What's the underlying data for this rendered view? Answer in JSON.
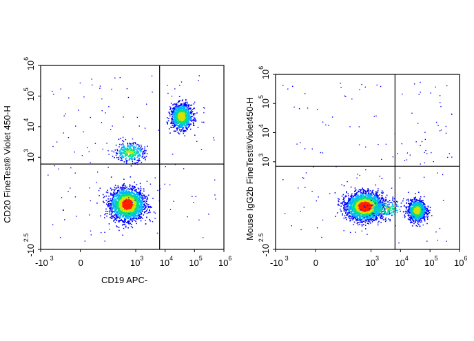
{
  "chart_data": [
    {
      "type": "scatter",
      "subtype": "flow-cytometry-density-dot-plot",
      "xlabel": "CD19  APC-",
      "ylabel": "CD20 FineTest® Violet 450-H",
      "x_scale": "biexponential",
      "y_scale": "biexponential",
      "xlim": [
        -1000,
        1000000
      ],
      "ylim": [
        -316,
        1000000
      ],
      "x_ticks": [
        {
          "value": -1000,
          "base": "-10",
          "exp": "3"
        },
        {
          "value": 0,
          "base": "0",
          "exp": ""
        },
        {
          "value": 1000,
          "base": "10",
          "exp": "3"
        },
        {
          "value": 10000,
          "base": "10",
          "exp": "4"
        },
        {
          "value": 100000,
          "base": "10",
          "exp": "5"
        },
        {
          "value": 1000000,
          "base": "10",
          "exp": "6"
        }
      ],
      "y_ticks": [
        {
          "value": -316,
          "base": "-10",
          "exp": "2.5"
        },
        {
          "value": 1000,
          "base": "10",
          "exp": "3"
        },
        {
          "value": 10000,
          "base": "10",
          "exp": "4"
        },
        {
          "value": 100000,
          "base": "10",
          "exp": "5"
        },
        {
          "value": 1000000,
          "base": "10",
          "exp": "6"
        }
      ],
      "quadrant_gate": {
        "x": 6500,
        "y": 600
      },
      "populations": [
        {
          "x": 500,
          "y": 80,
          "spread_x": 0.55,
          "spread_y": 0.5,
          "weight": 0.62
        },
        {
          "x": 35000,
          "y": 22000,
          "spread_x": 0.35,
          "spread_y": 0.4,
          "weight": 0.28
        },
        {
          "x": 600,
          "y": 1500,
          "spread_x": 0.5,
          "spread_y": 0.3,
          "weight": 0.1
        }
      ],
      "grid": false,
      "legend": "none"
    },
    {
      "type": "scatter",
      "subtype": "flow-cytometry-density-dot-plot",
      "xlabel": "",
      "ylabel": "Mouse IgG2b FineTest®Violet450-H",
      "x_scale": "biexponential",
      "y_scale": "biexponential",
      "xlim": [
        -1000,
        1000000
      ],
      "ylim": [
        -316,
        1000000
      ],
      "x_ticks": [
        {
          "value": -1000,
          "base": "-10",
          "exp": "3"
        },
        {
          "value": 0,
          "base": "0",
          "exp": ""
        },
        {
          "value": 1000,
          "base": "10",
          "exp": "3"
        },
        {
          "value": 10000,
          "base": "10",
          "exp": "4"
        },
        {
          "value": 100000,
          "base": "10",
          "exp": "5"
        },
        {
          "value": 1000000,
          "base": "10",
          "exp": "6"
        }
      ],
      "y_ticks": [
        {
          "value": -316,
          "base": "-10",
          "exp": "2.5"
        },
        {
          "value": 1000,
          "base": "10",
          "exp": "3"
        },
        {
          "value": 10000,
          "base": "10",
          "exp": "4"
        },
        {
          "value": 100000,
          "base": "10",
          "exp": "5"
        },
        {
          "value": 1000000,
          "base": "10",
          "exp": "6"
        }
      ],
      "quadrant_gate": {
        "x": 6500,
        "y": 700
      },
      "populations": [
        {
          "x": 600,
          "y": 80,
          "spread_x": 0.6,
          "spread_y": 0.45,
          "weight": 0.68
        },
        {
          "x": 35000,
          "y": 50,
          "spread_x": 0.3,
          "spread_y": 0.35,
          "weight": 0.27
        },
        {
          "x": 3000,
          "y": 60,
          "spread_x": 0.6,
          "spread_y": 0.3,
          "weight": 0.05
        }
      ],
      "grid": false,
      "legend": "none"
    }
  ],
  "colors": {
    "density_low": "#0000ff",
    "density_mid_low": "#00b4ff",
    "density_mid": "#00e08c",
    "density_mid_high": "#d8e000",
    "density_high": "#ff2000",
    "axis": "#000000"
  }
}
